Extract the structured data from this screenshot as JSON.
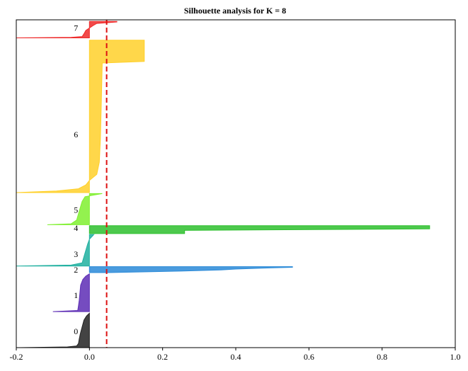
{
  "chart_data": {
    "type": "area",
    "title": "Silhouette analysis for K = 8",
    "xlabel": "",
    "ylabel": "",
    "xlim": [
      -0.2,
      1.0
    ],
    "ylim": [
      0,
      1
    ],
    "xticks": [
      "-0.2",
      "0.0",
      "0.2",
      "0.4",
      "0.6",
      "0.8",
      "1.0"
    ],
    "grid": false,
    "reference_line": {
      "x": 0.047,
      "style": "dashed",
      "color": "#dd1111"
    },
    "clusters": [
      {
        "label": "0",
        "color": "#222222",
        "label_y": 0.05,
        "bottom": 0.0,
        "top": 0.105,
        "profile": [
          [
            0,
            -0.19
          ],
          [
            0.02,
            -0.06
          ],
          [
            0.05,
            -0.035
          ],
          [
            0.12,
            -0.03
          ],
          [
            0.25,
            -0.028
          ],
          [
            0.4,
            -0.025
          ],
          [
            0.6,
            -0.02
          ],
          [
            0.8,
            -0.015
          ],
          [
            0.92,
            -0.008
          ],
          [
            1,
            0
          ]
        ]
      },
      {
        "label": "1",
        "color": "#5d2db5",
        "label_y": 0.16,
        "bottom": 0.11,
        "top": 0.225,
        "profile": [
          [
            0,
            -0.1
          ],
          [
            0.03,
            -0.032
          ],
          [
            0.15,
            -0.03
          ],
          [
            0.3,
            -0.028
          ],
          [
            0.5,
            -0.026
          ],
          [
            0.7,
            -0.024
          ],
          [
            0.85,
            -0.018
          ],
          [
            0.94,
            -0.01
          ],
          [
            1,
            0
          ]
        ]
      },
      {
        "label": "2",
        "color": "#2a8ad8",
        "label_y": 0.238,
        "bottom": 0.229,
        "top": 0.247,
        "profile": [
          [
            0,
            0.055
          ],
          [
            0.25,
            0.25
          ],
          [
            0.45,
            0.36
          ],
          [
            0.6,
            0.4
          ],
          [
            0.75,
            0.47
          ],
          [
            0.9,
            0.555
          ],
          [
            1,
            0.555
          ]
        ]
      },
      {
        "label": "3",
        "color": "#20b0a0",
        "label_y": 0.285,
        "bottom": 0.249,
        "top": 0.345,
        "profile": [
          [
            0,
            -0.2
          ],
          [
            0.03,
            -0.05
          ],
          [
            0.1,
            -0.02
          ],
          [
            0.3,
            -0.015
          ],
          [
            0.5,
            -0.01
          ],
          [
            0.7,
            -0.005
          ],
          [
            0.85,
            0.0
          ],
          [
            0.95,
            0.008
          ],
          [
            1,
            0.012
          ]
        ]
      },
      {
        "label": "4",
        "color": "#2ec02e",
        "label_y": 0.365,
        "bottom": 0.348,
        "top": 0.372,
        "profile": [
          [
            0,
            0.26
          ],
          [
            0.4,
            0.26
          ],
          [
            0.6,
            0.93
          ],
          [
            1,
            0.93
          ]
        ]
      },
      {
        "label": "5",
        "color": "#80f030",
        "label_y": 0.42,
        "bottom": 0.375,
        "top": 0.47,
        "profile": [
          [
            0,
            -0.115
          ],
          [
            0.03,
            -0.05
          ],
          [
            0.15,
            -0.035
          ],
          [
            0.35,
            -0.03
          ],
          [
            0.55,
            -0.025
          ],
          [
            0.75,
            -0.02
          ],
          [
            0.9,
            -0.012
          ],
          [
            1,
            0.035
          ]
        ]
      },
      {
        "label": "6",
        "color": "#ffd02a",
        "label_y": 0.65,
        "bottom": 0.473,
        "top": 0.938,
        "profile": [
          [
            0,
            -0.2
          ],
          [
            0.01,
            -0.09
          ],
          [
            0.025,
            -0.03
          ],
          [
            0.05,
            -0.01
          ],
          [
            0.08,
            0.0
          ],
          [
            0.12,
            0.02
          ],
          [
            0.2,
            0.027
          ],
          [
            0.35,
            0.03
          ],
          [
            0.55,
            0.032
          ],
          [
            0.75,
            0.034
          ],
          [
            0.85,
            0.035
          ],
          [
            0.86,
            0.15
          ],
          [
            1,
            0.15
          ]
        ]
      },
      {
        "label": "7",
        "color": "#ee2a2a",
        "label_y": 0.975,
        "bottom": 0.945,
        "top": 0.995,
        "profile": [
          [
            0,
            -0.2
          ],
          [
            0.03,
            -0.05
          ],
          [
            0.08,
            -0.02
          ],
          [
            0.25,
            -0.015
          ],
          [
            0.45,
            -0.01
          ],
          [
            0.6,
            0.0
          ],
          [
            0.75,
            0.01
          ],
          [
            0.88,
            0.02
          ],
          [
            0.97,
            0.075
          ],
          [
            1,
            0.075
          ]
        ]
      }
    ]
  }
}
